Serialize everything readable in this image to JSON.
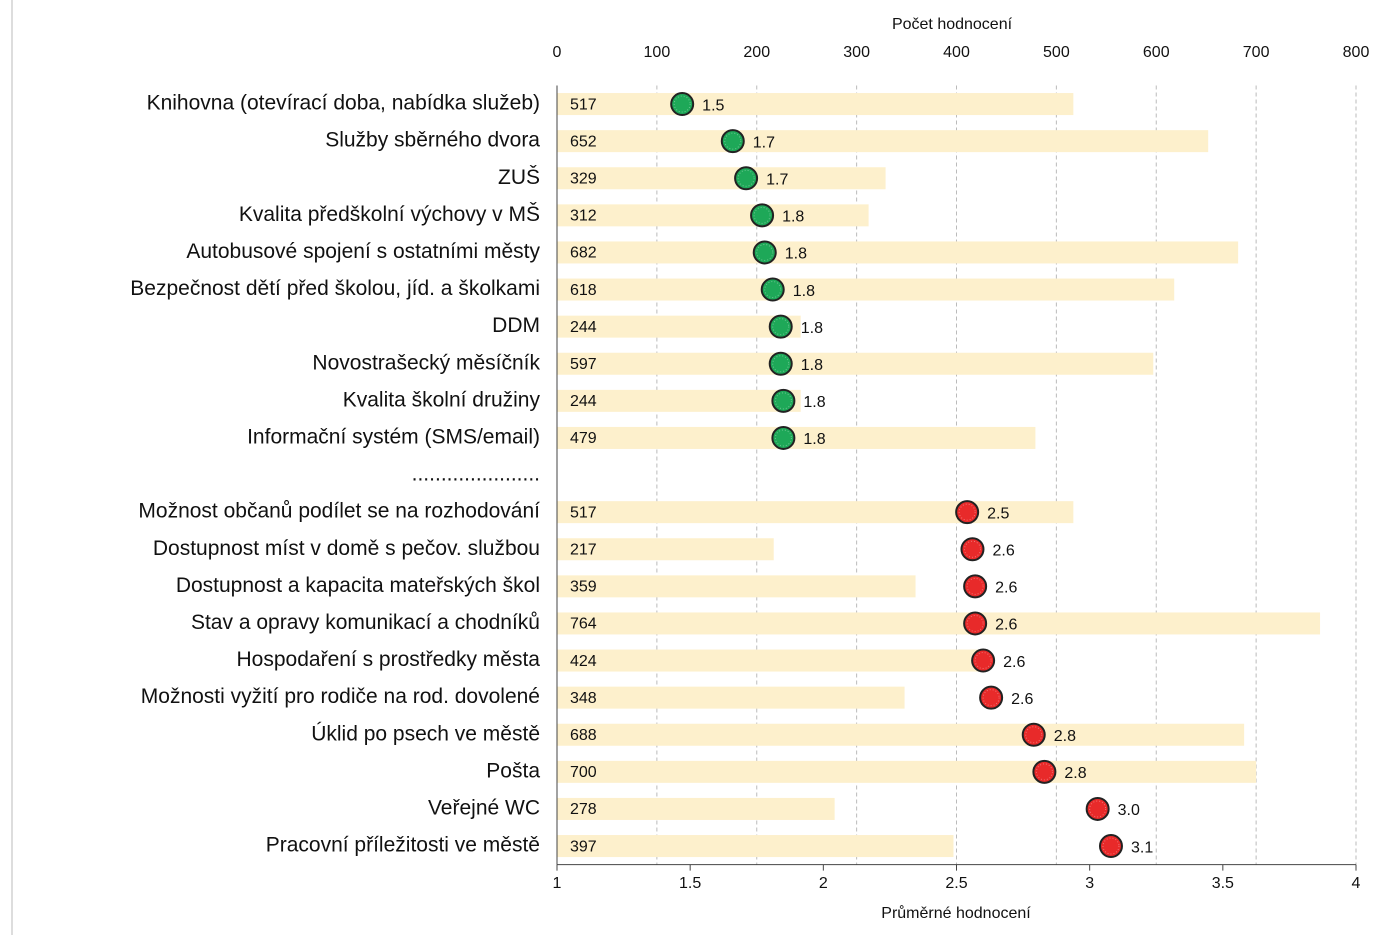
{
  "chart_data": {
    "type": "bar-dot",
    "categories": [
      "Knihovna (otevírací doba, nabídka služeb)",
      "Služby sběrného dvora",
      "ZUŠ",
      "Kvalita předškolní výchovy v MŠ",
      "Autobusové spojení s ostatními městy",
      "Bezpečnost dětí před školou, jíd. a školkami",
      "DDM",
      "Novostrašecký měsíčník",
      "Kvalita školní družiny",
      "Informační systém (SMS/email)",
      "......................",
      "Možnost občanů podílet se na rozhodování",
      "Dostupnost míst v domě s pečov. službou",
      "Dostupnost a kapacita mateřských škol",
      "Stav a opravy komunikací a chodníků",
      "Hospodaření s prostředky města",
      "Možnosti vyžití pro rodiče na rod. dovolené",
      "Úklid po psech ve městě",
      "Pošta",
      "Veřejné WC",
      "Pracovní příležitosti ve městě"
    ],
    "series": [
      {
        "name": "Počet hodnocení",
        "color": "#fdf0cc",
        "values": [
          517,
          652,
          329,
          312,
          682,
          618,
          244,
          597,
          244,
          479,
          null,
          517,
          217,
          359,
          764,
          424,
          348,
          688,
          700,
          278,
          397
        ],
        "xlim": [
          0,
          800
        ],
        "xticks": [
          0,
          100,
          200,
          300,
          400,
          500,
          600,
          700,
          800
        ]
      },
      {
        "name": "Průměrné hodnocení",
        "values": [
          1.47,
          1.66,
          1.71,
          1.77,
          1.78,
          1.81,
          1.84,
          1.84,
          1.85,
          1.85,
          null,
          2.54,
          2.56,
          2.57,
          2.57,
          2.6,
          2.63,
          2.79,
          2.83,
          3.03,
          3.08
        ],
        "value_labels": [
          "1.5",
          "1.7",
          "1.7",
          "1.8",
          "1.8",
          "1.8",
          "1.8",
          "1.8",
          "1.8",
          "1.8",
          null,
          "2.5",
          "2.6",
          "2.6",
          "2.6",
          "2.6",
          "2.6",
          "2.8",
          "2.8",
          "3.0",
          "3.1"
        ],
        "colors": [
          "#1ea858",
          "#1ea858",
          "#1ea858",
          "#1ea858",
          "#1ea858",
          "#1ea858",
          "#1ea858",
          "#1ea858",
          "#1ea858",
          "#1ea858",
          null,
          "#e82a2a",
          "#e82a2a",
          "#e82a2a",
          "#e82a2a",
          "#e82a2a",
          "#e82a2a",
          "#e82a2a",
          "#e82a2a",
          "#e82a2a",
          "#e82a2a"
        ],
        "xlim": [
          1,
          4
        ],
        "xticks": [
          1,
          1.5,
          2,
          2.5,
          3,
          3.5,
          4
        ]
      }
    ],
    "grid": true
  }
}
